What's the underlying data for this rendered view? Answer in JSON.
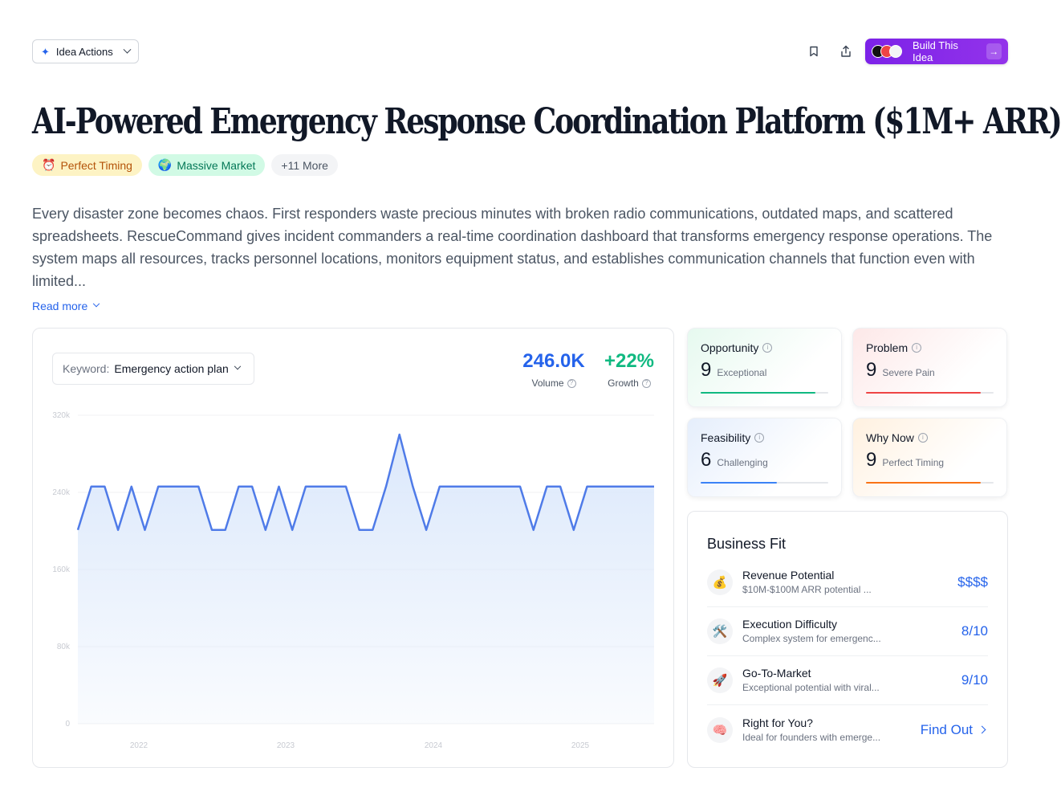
{
  "toolbar": {
    "idea_actions_label": "Idea Actions",
    "build_label": "Build This Idea",
    "accent": "#7c22e8"
  },
  "title": "AI-Powered Emergency Response Coordination Platform ($1M+ ARR)",
  "tags": [
    {
      "icon": "⏰",
      "label": "Perfect Timing"
    },
    {
      "icon": "🌍",
      "label": "Massive Market"
    },
    {
      "label": "+11 More"
    }
  ],
  "description": "Every disaster zone becomes chaos. First responders waste precious minutes with broken radio communications, outdated maps, and scattered spreadsheets. RescueCommand gives incident commanders a real-time coordination dashboard that transforms emergency response operations. The system maps all resources, tracks personnel locations, monitors equipment status, and establishes communication channels that function even with limited...",
  "read_more": "Read more",
  "trend": {
    "keyword_label": "Keyword:",
    "keyword_value": "Emergency action plan",
    "volume_value": "246.0K",
    "volume_label": "Volume",
    "growth_value": "+22%",
    "growth_label": "Growth"
  },
  "chart_data": {
    "type": "area",
    "title": "",
    "xlabel": "",
    "ylabel": "",
    "ylim": [
      0,
      320000
    ],
    "yticks": [
      0,
      80000,
      160000,
      240000,
      320000
    ],
    "ytick_labels": [
      "0",
      "80k",
      "160k",
      "240k",
      "320k"
    ],
    "xtick_labels": [
      "2022",
      "2023",
      "2024",
      "2025"
    ],
    "line_color": "#4f7be8",
    "fill_color": "#dbe8fb",
    "series": [
      {
        "values": [
          201000,
          246000,
          246000,
          201000,
          246000,
          201000,
          246000,
          246000,
          246000,
          246000,
          201000,
          201000,
          246000,
          246000,
          201000,
          246000,
          201000,
          246000,
          246000,
          246000,
          246000,
          201000,
          201000,
          246000,
          300000,
          246000,
          201000,
          246000,
          246000,
          246000,
          246000,
          246000,
          246000,
          246000,
          201000,
          246000,
          246000,
          201000,
          246000,
          246000,
          246000,
          246000,
          246000,
          246000
        ]
      }
    ]
  },
  "scores": {
    "opportunity": {
      "title": "Opportunity",
      "value": "9",
      "label": "Exceptional",
      "fraction": 0.9,
      "color": "#10b981"
    },
    "problem": {
      "title": "Problem",
      "value": "9",
      "label": "Severe Pain",
      "fraction": 0.9,
      "color": "#ef4444"
    },
    "feasibility": {
      "title": "Feasibility",
      "value": "6",
      "label": "Challenging",
      "fraction": 0.6,
      "color": "#3b82f6"
    },
    "why_now": {
      "title": "Why Now",
      "value": "9",
      "label": "Perfect Timing",
      "fraction": 0.9,
      "color": "#f97316"
    }
  },
  "business_fit": {
    "title": "Business Fit",
    "items": [
      {
        "icon": "💰",
        "name": "Revenue Potential",
        "desc": "$10M-$100M ARR potential ...",
        "value": "$$$$"
      },
      {
        "icon": "🛠️",
        "name": "Execution Difficulty",
        "desc": "Complex system for emergenc...",
        "value": "8/10"
      },
      {
        "icon": "🚀",
        "name": "Go-To-Market",
        "desc": "Exceptional potential with viral...",
        "value": "9/10"
      },
      {
        "icon": "🧠",
        "name": "Right for You?",
        "desc": "Ideal for founders with emerge...",
        "value": "Find Out"
      }
    ]
  }
}
